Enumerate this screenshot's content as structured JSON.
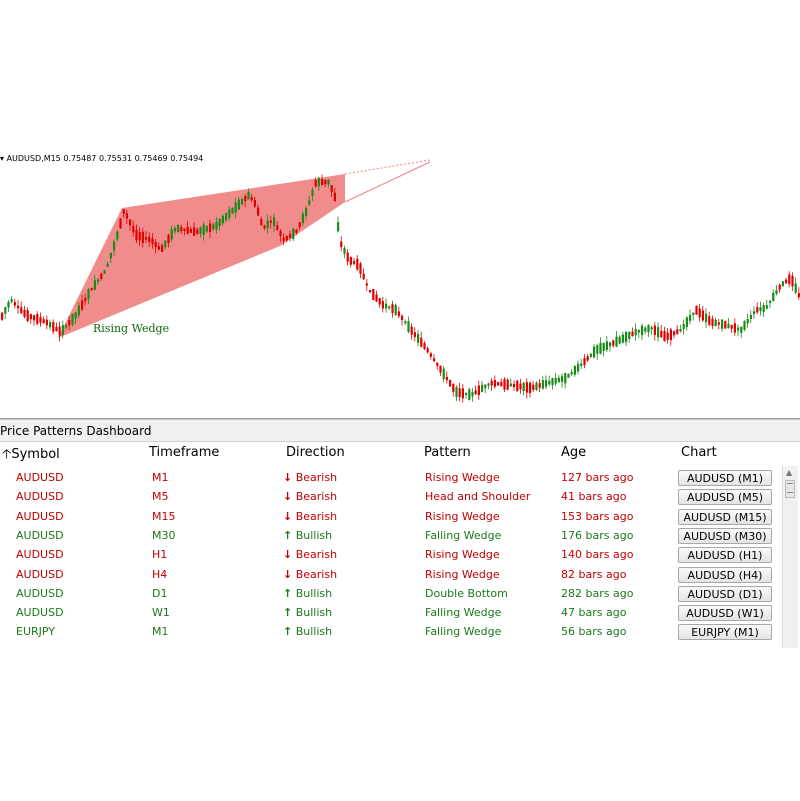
{
  "chart": {
    "symbol_info": "AUDUSD,M15  0.75487 0.75531 0.75469 0.75494",
    "pattern_label": "Rising Wedge",
    "colors": {
      "bull": "#1a8a1a",
      "bear": "#e00000",
      "wedge": "#f08080"
    }
  },
  "dashboard": {
    "title": "Price Patterns Dashboard",
    "headers": {
      "symbol": "Symbol",
      "timeframe": "Timeframe",
      "direction": "Direction",
      "pattern": "Pattern",
      "age": "Age",
      "chart": "Chart"
    },
    "sort_icon": "sort-arrow-up-icon",
    "rows": [
      {
        "symbol": "AUDUSD",
        "timeframe": "M1",
        "direction": "Bearish",
        "pattern": "Rising Wedge",
        "age": "127 bars ago",
        "chart": "AUDUSD (M1)",
        "bias": "bear"
      },
      {
        "symbol": "AUDUSD",
        "timeframe": "M5",
        "direction": "Bearish",
        "pattern": "Head and Shoulder",
        "age": "41 bars ago",
        "chart": "AUDUSD (M5)",
        "bias": "bear"
      },
      {
        "symbol": "AUDUSD",
        "timeframe": "M15",
        "direction": "Bearish",
        "pattern": "Rising Wedge",
        "age": "153 bars ago",
        "chart": "AUDUSD (M15)",
        "bias": "bear"
      },
      {
        "symbol": "AUDUSD",
        "timeframe": "M30",
        "direction": "Bullish",
        "pattern": "Falling Wedge",
        "age": "176 bars ago",
        "chart": "AUDUSD (M30)",
        "bias": "bull"
      },
      {
        "symbol": "AUDUSD",
        "timeframe": "H1",
        "direction": "Bearish",
        "pattern": "Rising Wedge",
        "age": "140 bars ago",
        "chart": "AUDUSD (H1)",
        "bias": "bear"
      },
      {
        "symbol": "AUDUSD",
        "timeframe": "H4",
        "direction": "Bearish",
        "pattern": "Rising Wedge",
        "age": "82 bars ago",
        "chart": "AUDUSD (H4)",
        "bias": "bear"
      },
      {
        "symbol": "AUDUSD",
        "timeframe": "D1",
        "direction": "Bullish",
        "pattern": "Double Bottom",
        "age": "282 bars ago",
        "chart": "AUDUSD (D1)",
        "bias": "bull"
      },
      {
        "symbol": "AUDUSD",
        "timeframe": "W1",
        "direction": "Bullish",
        "pattern": "Falling Wedge",
        "age": "47 bars ago",
        "chart": "AUDUSD (W1)",
        "bias": "bull"
      },
      {
        "symbol": "EURJPY",
        "timeframe": "M1",
        "direction": "Bullish",
        "pattern": "Falling Wedge",
        "age": "56 bars ago",
        "chart": "EURJPY (M1)",
        "bias": "bull"
      }
    ]
  }
}
